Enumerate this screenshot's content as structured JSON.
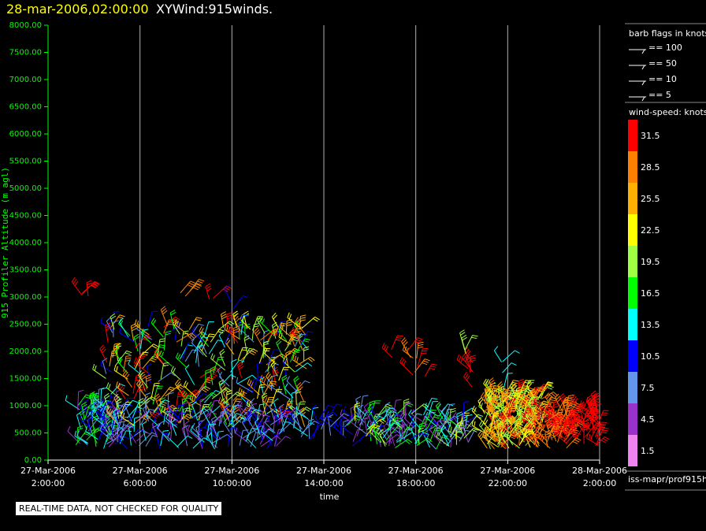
{
  "header": {
    "date": "28-mar-2006,02:00:00",
    "title": "XYWind:915winds."
  },
  "quality_note": "REAL-TIME DATA, NOT CHECKED FOR QUALITY",
  "legend": {
    "barb_title": "barb flags in knots",
    "barb_items": [
      "== 100",
      "== 50",
      "== 10",
      "== 5"
    ],
    "speed_title": "wind-speed: knots",
    "source_label": "iss-mapr/prof915h",
    "colors": [
      "#ff0000",
      "#ff8000",
      "#ffb000",
      "#ffff00",
      "#a0ff40",
      "#00ff00",
      "#00ffff",
      "#0000ff",
      "#6495ed",
      "#9932cc",
      "#ee82ee"
    ],
    "speed_labels": [
      "31.5",
      "28.5",
      "25.5",
      "22.5",
      "19.5",
      "16.5",
      "13.5",
      "10.5",
      "7.5",
      "4.5",
      "1.5"
    ]
  },
  "chart_data": {
    "type": "scatter",
    "ylabel": "915 Profiler Altitude (m agl)",
    "xlabel": "time",
    "ylim": [
      0,
      8000
    ],
    "yticks": [
      "0.00",
      "500.00",
      "1000.00",
      "1500.00",
      "2000.00",
      "2500.00",
      "3000.00",
      "3500.00",
      "4000.00",
      "4500.00",
      "5000.00",
      "5500.00",
      "6000.00",
      "6500.00",
      "7000.00",
      "7500.00",
      "8000.00"
    ],
    "xlim_hours": [
      0,
      24
    ],
    "xticks": [
      {
        "date": "27-Mar-2006",
        "time": "2:00:00"
      },
      {
        "date": "27-Mar-2006",
        "time": "6:00:00"
      },
      {
        "date": "27-Mar-2006",
        "time": "10:00:00"
      },
      {
        "date": "27-Mar-2006",
        "time": "14:00:00"
      },
      {
        "date": "27-Mar-2006",
        "time": "18:00:00"
      },
      {
        "date": "27-Mar-2006",
        "time": "22:00:00"
      },
      {
        "date": "28-Mar-2006",
        "time": "2:00:00"
      }
    ],
    "grid": "vertical",
    "barb_clusters": [
      {
        "x": [
          1.2,
          3.2
        ],
        "y": [
          200,
          1000
        ],
        "speed": [
          4,
          18
        ],
        "count": 90
      },
      {
        "x": [
          2.5,
          11.3
        ],
        "y": [
          600,
          2500
        ],
        "speed": [
          6,
          32
        ],
        "count": 280
      },
      {
        "x": [
          3,
          10
        ],
        "y": [
          200,
          800
        ],
        "speed": [
          3,
          14
        ],
        "count": 130
      },
      {
        "x": [
          1.4,
          2.2
        ],
        "y": [
          2900,
          3100
        ],
        "speed": [
          32,
          32
        ],
        "count": 4
      },
      {
        "x": [
          5.5,
          6.2
        ],
        "y": [
          3000,
          3150
        ],
        "speed": [
          28,
          28
        ],
        "count": 3
      },
      {
        "x": [
          7,
          7.3
        ],
        "y": [
          2900,
          3050
        ],
        "speed": [
          32,
          32
        ],
        "count": 2
      },
      {
        "x": [
          7.8,
          8.2
        ],
        "y": [
          2700,
          2900
        ],
        "speed": [
          10,
          10
        ],
        "count": 2
      },
      {
        "x": [
          9,
          10
        ],
        "y": [
          1700,
          2350
        ],
        "speed": [
          8,
          32
        ],
        "count": 10
      },
      {
        "x": [
          10,
          11.5
        ],
        "y": [
          350,
          800
        ],
        "speed": [
          4,
          14
        ],
        "count": 20
      },
      {
        "x": [
          11.5,
          13
        ],
        "y": [
          350,
          750
        ],
        "speed": [
          6,
          12
        ],
        "count": 15
      },
      {
        "x": [
          13,
          18.3
        ],
        "y": [
          200,
          850
        ],
        "speed": [
          3,
          22
        ],
        "count": 150
      },
      {
        "x": [
          14.5,
          15
        ],
        "y": [
          1850,
          2050
        ],
        "speed": [
          32,
          32
        ],
        "count": 2
      },
      {
        "x": [
          15.6,
          16.5
        ],
        "y": [
          1500,
          2050
        ],
        "speed": [
          27,
          32
        ],
        "count": 8
      },
      {
        "x": [
          18.2,
          18.5
        ],
        "y": [
          1300,
          1900
        ],
        "speed": [
          32,
          32
        ],
        "count": 6
      },
      {
        "x": [
          17.6,
          18.2
        ],
        "y": [
          1900,
          2100
        ],
        "speed": [
          20,
          20
        ],
        "count": 3
      },
      {
        "x": [
          19.5,
          20
        ],
        "y": [
          1300,
          2000
        ],
        "speed": [
          13,
          13
        ],
        "count": 4
      },
      {
        "x": [
          19,
          21.5
        ],
        "y": [
          200,
          1200
        ],
        "speed": [
          18,
          32
        ],
        "count": 220
      },
      {
        "x": [
          21.5,
          22.6
        ],
        "y": [
          200,
          950
        ],
        "speed": [
          27,
          32
        ],
        "count": 60
      },
      {
        "x": [
          22.4,
          23.1
        ],
        "y": [
          300,
          700
        ],
        "speed": [
          32,
          32
        ],
        "count": 15
      },
      {
        "x": [
          23.2,
          24
        ],
        "y": [
          250,
          950
        ],
        "speed": [
          30,
          32
        ],
        "count": 35
      }
    ]
  }
}
